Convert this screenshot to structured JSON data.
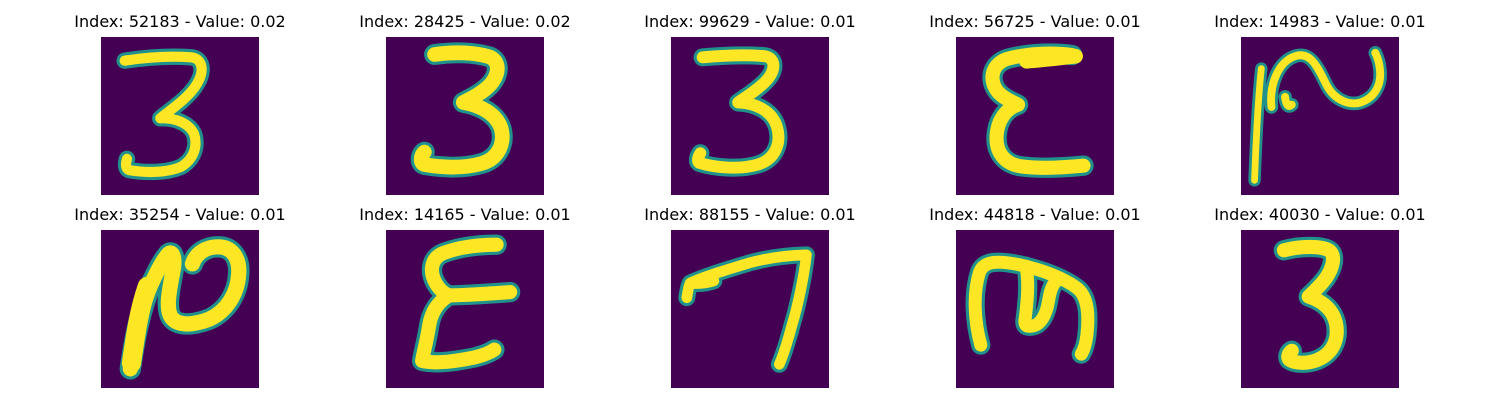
{
  "colors": {
    "background": "#440154",
    "stroke_inner": "#fde725",
    "stroke_edge": "#21918c",
    "title_text": "#000000"
  },
  "panels": [
    {
      "title": "Index: 52183 - Value: 0.02",
      "digit": "3"
    },
    {
      "title": "Index: 28425 - Value: 0.02",
      "digit": "3"
    },
    {
      "title": "Index: 99629 - Value: 0.01",
      "digit": "3"
    },
    {
      "title": "Index: 56725 - Value: 0.01",
      "digit": "E"
    },
    {
      "title": "Index: 14983 - Value: 0.01",
      "digit": "rotated-2"
    },
    {
      "title": "Index: 35254 - Value: 0.01",
      "digit": "rotated-2"
    },
    {
      "title": "Index: 14165 - Value: 0.01",
      "digit": "E"
    },
    {
      "title": "Index: 88155 - Value: 0.01",
      "digit": "7"
    },
    {
      "title": "Index: 44818 - Value: 0.01",
      "digit": "rotated-3"
    },
    {
      "title": "Index: 40030 - Value: 0.01",
      "digit": "3"
    }
  ]
}
